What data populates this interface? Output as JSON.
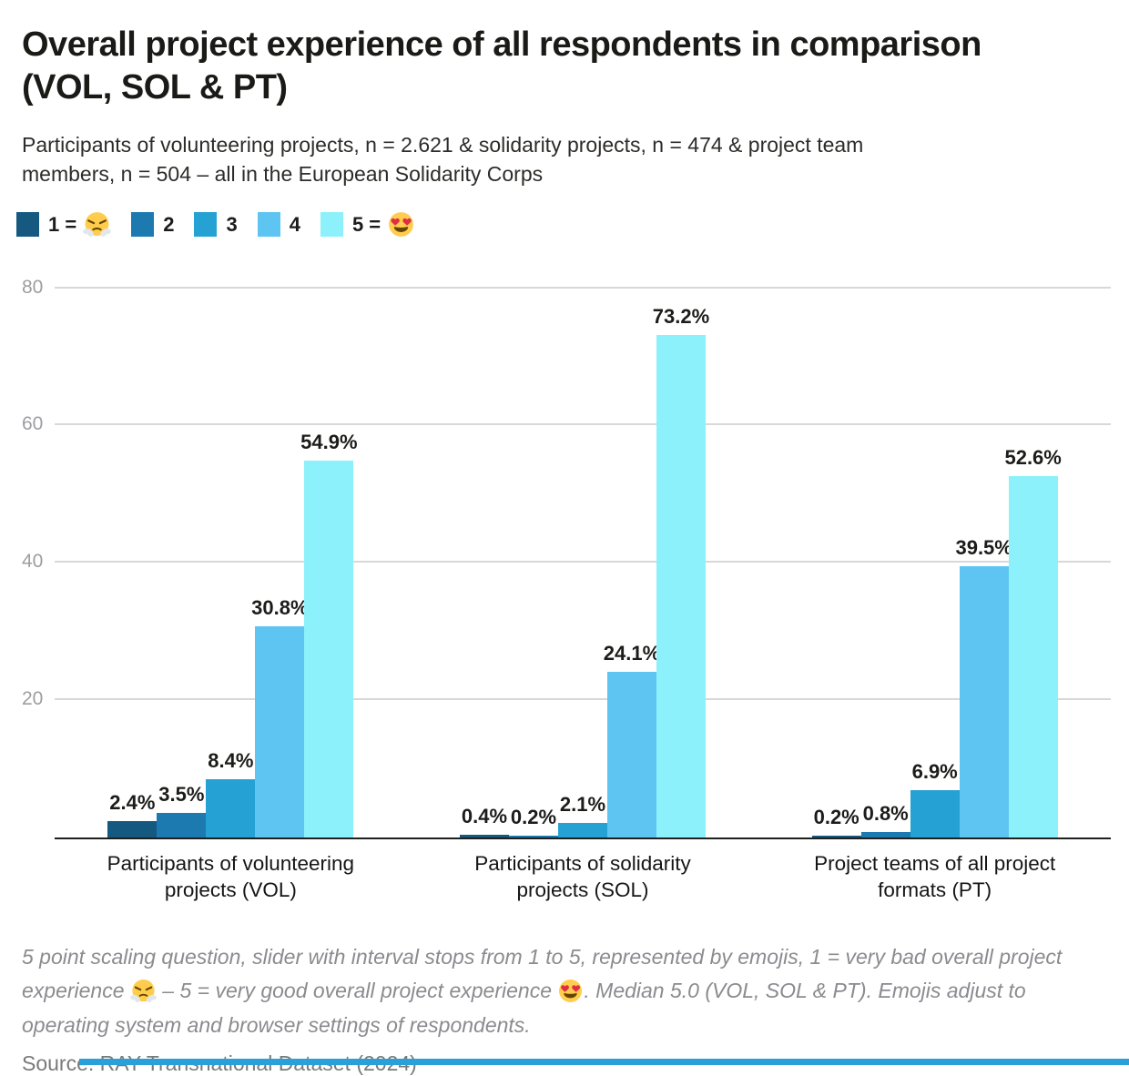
{
  "header": {
    "title": "Overall project experience of all respondents in comparison\n(VOL, SOL & PT)",
    "subtitle": "Participants of volunteering projects, n = 2.621 & solidarity projects, n = 474 & project team\nmembers, n = 504 – all in the European Solidarity Corps"
  },
  "legend": {
    "items": [
      {
        "label": "1 =",
        "emoji": "steaming-face",
        "color": "#155980"
      },
      {
        "label": "2",
        "color": "#1d7ab0"
      },
      {
        "label": "3",
        "color": "#25a2d3"
      },
      {
        "label": "4",
        "color": "#5ec5f2"
      },
      {
        "label": "5 =",
        "emoji": "heart-eyes",
        "color": "#8df1fb"
      }
    ]
  },
  "chart_data": {
    "type": "bar",
    "title": "Overall project experience of all respondents in comparison (VOL, SOL & PT)",
    "categories": [
      "Participants of volunteering projects (VOL)",
      "Participants of solidarity projects (SOL)",
      "Project teams of all project formats (PT)"
    ],
    "category_lines": [
      [
        "Participants of volunteering",
        "projects (VOL)"
      ],
      [
        "Participants of solidarity",
        "projects (SOL)"
      ],
      [
        "Project teams of all project",
        "formats (PT)"
      ]
    ],
    "category_keys": [
      "vol",
      "sol",
      "pt"
    ],
    "series": [
      {
        "name": "1",
        "color": "#155980",
        "values": [
          2.4,
          0.4,
          0.2
        ],
        "labels": [
          "2.4%",
          "0.4%",
          "0.2%"
        ]
      },
      {
        "name": "2",
        "color": "#1d7ab0",
        "values": [
          3.5,
          0.2,
          0.8
        ],
        "labels": [
          "3.5%",
          "0.2%",
          "0.8%"
        ]
      },
      {
        "name": "3",
        "color": "#25a2d3",
        "values": [
          8.4,
          2.1,
          6.9
        ],
        "labels": [
          "8.4%",
          "2.1%",
          "6.9%"
        ]
      },
      {
        "name": "4",
        "color": "#5ec5f2",
        "values": [
          30.8,
          24.1,
          39.5
        ],
        "labels": [
          "30.8%",
          "24.1%",
          "39.5%"
        ]
      },
      {
        "name": "5",
        "color": "#8df1fb",
        "values": [
          54.9,
          73.2,
          52.6
        ],
        "labels": [
          "54.9%",
          "73.2%",
          "52.6%"
        ]
      }
    ],
    "legend_labels": [
      "1 = 😤",
      "2",
      "3",
      "4",
      "5 = 😍"
    ],
    "legend_position": "top",
    "xlabel": "",
    "ylabel": "",
    "ylim": [
      0,
      80
    ],
    "yticks": [
      20,
      40,
      60,
      80
    ],
    "grid": true
  },
  "footnote": {
    "part1": "5 point scaling question, slider with interval stops from 1 to 5, represented by emojis, 1 = very bad overall project\nexperience ",
    "part2": " – 5 = very good overall project experience ",
    "part3": ". Median 5.0 (VOL, SOL & PT). Emojis adjust to\noperating system and browser settings of respondents."
  },
  "footer": {
    "source": "Source: RAY Transnational Dataset (2024)",
    "accent_color": "#2aa0d8"
  }
}
